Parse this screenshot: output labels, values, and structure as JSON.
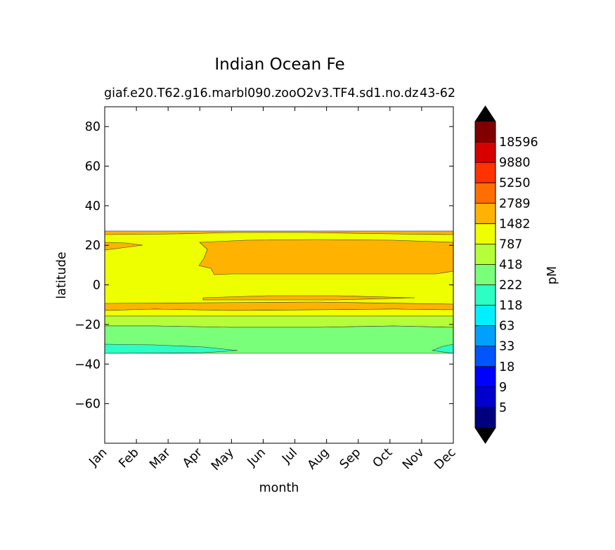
{
  "chart_data": {
    "type": "heatmap",
    "title": "Indian Ocean Fe",
    "subtitle_left": "giaf.e20.T62.g16.marbl090.zooO2v3.TF4.sd1.no.dz",
    "subtitle_right": "43-62",
    "xlabel": "month",
    "ylabel": "latitude",
    "x_categories": [
      "Jan",
      "Feb",
      "Mar",
      "Apr",
      "May",
      "Jun",
      "Jul",
      "Aug",
      "Sep",
      "Oct",
      "Nov",
      "Dec"
    ],
    "yticks": [
      80,
      60,
      40,
      20,
      0,
      -20,
      -40,
      -60
    ],
    "ylim": [
      -80,
      90
    ],
    "colorbar": {
      "label": "pM",
      "levels": [
        "5",
        "9",
        "18",
        "33",
        "63",
        "118",
        "222",
        "418",
        "787",
        "1482",
        "2789",
        "5250",
        "9880",
        "18596"
      ],
      "colors": [
        "#00007f",
        "#0000cc",
        "#0000ff",
        "#0055ff",
        "#00a0ff",
        "#00f0ff",
        "#2dffc4",
        "#7aff7a",
        "#b4ff3a",
        "#eeff00",
        "#ffb300",
        "#ff6e00",
        "#ff3200",
        "#d60000",
        "#800000"
      ],
      "extend": "both",
      "extend_colors": {
        "under": "#000000",
        "over": "#000000"
      }
    },
    "bands": [
      {
        "range_pM": "1482-2789",
        "lat_min": 27,
        "lat_max": 24
      },
      {
        "range_pM": "787-1482",
        "lat_min": 24,
        "lat_max": -9
      },
      {
        "range_pM": "1482-2789",
        "lat_min": 22,
        "lat_max": 6
      },
      {
        "range_pM": "1482-2789",
        "lat_min": -9,
        "lat_max": -13
      },
      {
        "range_pM": "418-787",
        "lat_min": -15,
        "lat_max": -21
      },
      {
        "range_pM": "222-418",
        "lat_min": -21,
        "lat_max": -34
      },
      {
        "range_pM": "118-222",
        "lat_min": -30,
        "lat_max": -34
      }
    ]
  }
}
